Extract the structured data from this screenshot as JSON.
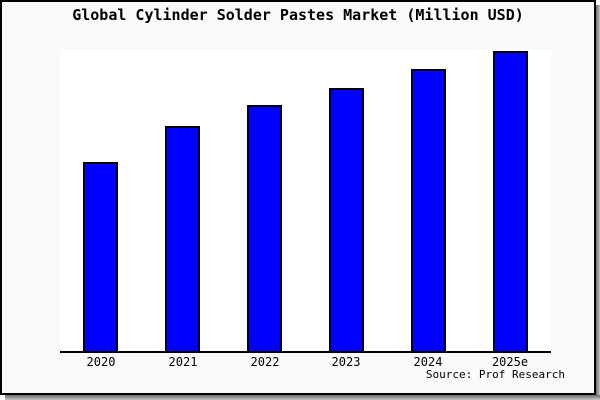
{
  "title": "Global Cylinder Solder Pastes Market (Million USD)",
  "source_text": "Source: Prof Research",
  "colors": {
    "frame_background": "#fafafa",
    "plot_background": "#ffffff",
    "bar_fill": "#0000ff",
    "bar_border": "#000000",
    "axis": "#000000",
    "text": "#000000"
  },
  "chart_data": {
    "type": "bar",
    "title": "Global Cylinder Solder Pastes Market (Million USD)",
    "categories": [
      "2020",
      "2021",
      "2022",
      "2023",
      "2024",
      "2025e"
    ],
    "values": [
      63,
      75,
      82,
      87.7,
      94,
      100
    ],
    "xlabel": "",
    "ylabel": "",
    "ylim": [
      0,
      100.3
    ],
    "grid": false,
    "legend": false,
    "y_axis_labels_visible": false,
    "note": "No numeric y-axis shown in image; values are relative estimates with tallest bar normalized to 100"
  }
}
